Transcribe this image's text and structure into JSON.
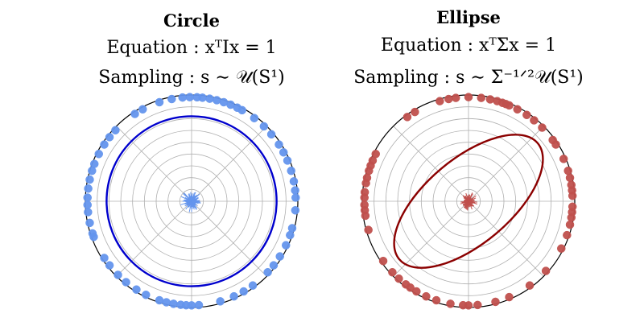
{
  "chart_data": [
    {
      "type": "scatter",
      "projection": "polar",
      "title": "Circle",
      "equation": "Equation : xᵀIx = 1",
      "sampling": "Sampling : s ∼ 𝒰(S¹)",
      "grid": true,
      "rlim": [
        0,
        1
      ],
      "series": [
        {
          "kind": "points",
          "color": "#6495ED",
          "theta_deg": [
            2,
            6,
            11,
            17,
            23,
            28,
            33,
            40,
            46,
            53,
            61,
            64,
            68,
            72,
            76,
            80,
            84,
            87,
            91,
            95,
            101,
            108,
            118,
            123,
            137,
            142,
            147,
            153,
            159,
            163,
            168,
            173,
            178,
            182,
            186,
            192,
            198,
            200,
            213,
            218,
            225,
            231,
            238,
            244,
            252,
            256,
            260,
            264,
            267,
            270,
            274,
            286,
            294,
            300,
            306,
            317,
            322,
            328,
            335,
            341,
            345,
            355
          ],
          "r": [
            0.98,
            0.98,
            0.98,
            0.98,
            0.98,
            0.98,
            0.98,
            0.98,
            0.98,
            0.98,
            0.98,
            0.98,
            0.98,
            0.98,
            0.98,
            0.98,
            0.98,
            0.98,
            0.98,
            0.98,
            0.98,
            0.98,
            0.98,
            0.98,
            0.98,
            0.98,
            0.98,
            0.98,
            0.98,
            0.98,
            0.98,
            0.98,
            0.98,
            0.98,
            0.98,
            0.98,
            0.98,
            0.98,
            0.98,
            0.98,
            0.98,
            0.98,
            0.98,
            0.98,
            0.98,
            0.98,
            0.98,
            0.98,
            0.98,
            0.98,
            0.98,
            0.98,
            0.98,
            0.98,
            0.98,
            0.98,
            0.98,
            0.98,
            0.98,
            0.98,
            0.98,
            0.98
          ]
        },
        {
          "kind": "curve",
          "color": "#0000CD",
          "shape": "circle",
          "radius": 0.8
        },
        {
          "kind": "center-rays",
          "color": "#6495ED",
          "r_max": 0.11
        }
      ]
    },
    {
      "type": "scatter",
      "projection": "polar",
      "title": "Ellipse",
      "equation": "Equation : xᵀΣx = 1",
      "sampling": "Sampling : s ∼ Σ⁻¹ᐟ²𝒰(S¹)",
      "grid": true,
      "rlim": [
        0,
        1
      ],
      "series": [
        {
          "kind": "points",
          "color": "#C0504D",
          "theta_deg": [
            3,
            6,
            9,
            13,
            17,
            24,
            33,
            36,
            45,
            51,
            56,
            62,
            67,
            69,
            71,
            74,
            78,
            83,
            90,
            97,
            101,
            106,
            121,
            126,
            153,
            157,
            160,
            163,
            167,
            170,
            175,
            178,
            182,
            185,
            188,
            196,
            215,
            223,
            228,
            233,
            236,
            240,
            246,
            252,
            260,
            267,
            270,
            275,
            285,
            293,
            306,
            318,
            333,
            341,
            347,
            351,
            354,
            357
          ],
          "r": [
            0.98,
            0.98,
            0.98,
            0.98,
            0.98,
            0.98,
            0.98,
            0.98,
            0.98,
            0.98,
            0.98,
            0.98,
            0.98,
            0.98,
            0.98,
            0.98,
            0.98,
            0.98,
            0.98,
            0.98,
            0.98,
            0.98,
            0.98,
            0.98,
            0.98,
            0.98,
            0.98,
            0.98,
            0.98,
            0.98,
            0.98,
            0.98,
            0.98,
            0.98,
            0.98,
            0.98,
            0.98,
            0.98,
            0.98,
            0.98,
            0.98,
            0.98,
            0.98,
            0.98,
            0.98,
            0.98,
            0.98,
            0.98,
            0.98,
            0.98,
            0.98,
            0.98,
            0.98,
            0.98,
            0.98,
            0.98,
            0.98,
            0.98
          ]
        },
        {
          "kind": "curve",
          "color": "#8B0000",
          "shape": "ellipse",
          "semi_major": 0.85,
          "semi_minor": 0.4,
          "rotation_deg": 40
        },
        {
          "kind": "center-rays",
          "color": "#C0504D",
          "r_max": 0.09
        }
      ]
    }
  ]
}
